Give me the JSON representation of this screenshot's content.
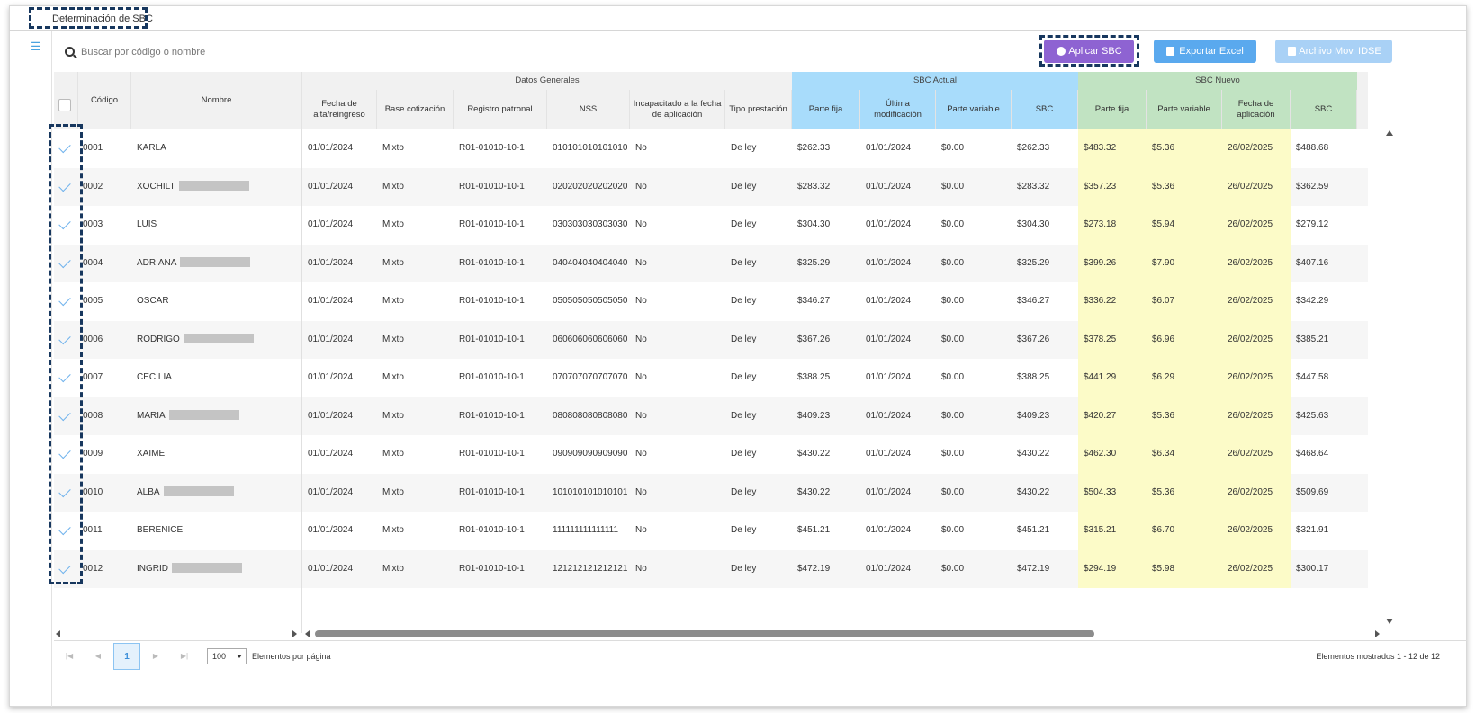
{
  "tab": {
    "label": "Determinación de SBC"
  },
  "search": {
    "placeholder": "Buscar por código o nombre"
  },
  "toolbar": {
    "apply_label": "Aplicar SBC",
    "export_label": "Exportar Excel",
    "idse_label": "Archivo Mov. IDSE"
  },
  "colors": {
    "apply": "#8e63d2",
    "export": "#5aa9ee",
    "idse": "#a9d1f6",
    "sbc_actual_bg": "#a8dcfb",
    "sbc_nuevo_header": "#c1e3c2",
    "sbc_nuevo_body": "#fcfbc8"
  },
  "headers": {
    "groups": {
      "datos": "Datos Generales",
      "actual": "SBC Actual",
      "nuevo": "SBC Nuevo"
    },
    "codigo": "Código",
    "nombre": "Nombre",
    "fecha_alta": "Fecha de alta/reingreso",
    "base": "Base cotización",
    "registro": "Registro patronal",
    "nss": "NSS",
    "incapacitado": "Incapacitado a la fecha de aplicación",
    "tipo": "Tipo prestación",
    "a_fija": "Parte fija",
    "a_ultima": "Última modificación",
    "a_variable": "Parte variable",
    "a_sbc": "SBC",
    "n_fija": "Parte fija",
    "n_variable": "Parte variable",
    "n_fecha": "Fecha de aplicación",
    "n_sbc": "SBC"
  },
  "rows": [
    {
      "codigo": "0001",
      "nombre": "KARLA",
      "redacted": false,
      "fecha": "01/01/2024",
      "base": "Mixto",
      "registro": "R01-01010-10-1",
      "nss": "010101010101010",
      "inc": "No",
      "tipo": "De ley",
      "a_fija": "$262.33",
      "a_ultima": "01/01/2024",
      "a_var": "$0.00",
      "a_sbc": "$262.33",
      "n_fija": "$483.32",
      "n_var": "$5.36",
      "n_fecha": "26/02/2025",
      "n_sbc": "$488.68"
    },
    {
      "codigo": "0002",
      "nombre": "XOCHILT",
      "redacted": true,
      "fecha": "01/01/2024",
      "base": "Mixto",
      "registro": "R01-01010-10-1",
      "nss": "020202020202020",
      "inc": "No",
      "tipo": "De ley",
      "a_fija": "$283.32",
      "a_ultima": "01/01/2024",
      "a_var": "$0.00",
      "a_sbc": "$283.32",
      "n_fija": "$357.23",
      "n_var": "$5.36",
      "n_fecha": "26/02/2025",
      "n_sbc": "$362.59"
    },
    {
      "codigo": "0003",
      "nombre": "LUIS",
      "redacted": false,
      "fecha": "01/01/2024",
      "base": "Mixto",
      "registro": "R01-01010-10-1",
      "nss": "030303030303030",
      "inc": "No",
      "tipo": "De ley",
      "a_fija": "$304.30",
      "a_ultima": "01/01/2024",
      "a_var": "$0.00",
      "a_sbc": "$304.30",
      "n_fija": "$273.18",
      "n_var": "$5.94",
      "n_fecha": "26/02/2025",
      "n_sbc": "$279.12"
    },
    {
      "codigo": "0004",
      "nombre": "ADRIANA",
      "redacted": true,
      "fecha": "01/01/2024",
      "base": "Mixto",
      "registro": "R01-01010-10-1",
      "nss": "040404040404040",
      "inc": "No",
      "tipo": "De ley",
      "a_fija": "$325.29",
      "a_ultima": "01/01/2024",
      "a_var": "$0.00",
      "a_sbc": "$325.29",
      "n_fija": "$399.26",
      "n_var": "$7.90",
      "n_fecha": "26/02/2025",
      "n_sbc": "$407.16"
    },
    {
      "codigo": "0005",
      "nombre": "OSCAR",
      "redacted": false,
      "fecha": "01/01/2024",
      "base": "Mixto",
      "registro": "R01-01010-10-1",
      "nss": "050505050505050",
      "inc": "No",
      "tipo": "De ley",
      "a_fija": "$346.27",
      "a_ultima": "01/01/2024",
      "a_var": "$0.00",
      "a_sbc": "$346.27",
      "n_fija": "$336.22",
      "n_var": "$6.07",
      "n_fecha": "26/02/2025",
      "n_sbc": "$342.29"
    },
    {
      "codigo": "0006",
      "nombre": "RODRIGO",
      "redacted": true,
      "fecha": "01/01/2024",
      "base": "Mixto",
      "registro": "R01-01010-10-1",
      "nss": "060606060606060",
      "inc": "No",
      "tipo": "De ley",
      "a_fija": "$367.26",
      "a_ultima": "01/01/2024",
      "a_var": "$0.00",
      "a_sbc": "$367.26",
      "n_fija": "$378.25",
      "n_var": "$6.96",
      "n_fecha": "26/02/2025",
      "n_sbc": "$385.21"
    },
    {
      "codigo": "0007",
      "nombre": "CECILIA",
      "redacted": false,
      "fecha": "01/01/2024",
      "base": "Mixto",
      "registro": "R01-01010-10-1",
      "nss": "070707070707070",
      "inc": "No",
      "tipo": "De ley",
      "a_fija": "$388.25",
      "a_ultima": "01/01/2024",
      "a_var": "$0.00",
      "a_sbc": "$388.25",
      "n_fija": "$441.29",
      "n_var": "$6.29",
      "n_fecha": "26/02/2025",
      "n_sbc": "$447.58"
    },
    {
      "codigo": "0008",
      "nombre": "MARIA",
      "redacted": true,
      "fecha": "01/01/2024",
      "base": "Mixto",
      "registro": "R01-01010-10-1",
      "nss": "080808080808080",
      "inc": "No",
      "tipo": "De ley",
      "a_fija": "$409.23",
      "a_ultima": "01/01/2024",
      "a_var": "$0.00",
      "a_sbc": "$409.23",
      "n_fija": "$420.27",
      "n_var": "$5.36",
      "n_fecha": "26/02/2025",
      "n_sbc": "$425.63"
    },
    {
      "codigo": "0009",
      "nombre": "XAIME",
      "redacted": false,
      "fecha": "01/01/2024",
      "base": "Mixto",
      "registro": "R01-01010-10-1",
      "nss": "090909090909090",
      "inc": "No",
      "tipo": "De ley",
      "a_fija": "$430.22",
      "a_ultima": "01/01/2024",
      "a_var": "$0.00",
      "a_sbc": "$430.22",
      "n_fija": "$462.30",
      "n_var": "$6.34",
      "n_fecha": "26/02/2025",
      "n_sbc": "$468.64"
    },
    {
      "codigo": "0010",
      "nombre": "ALBA",
      "redacted": true,
      "fecha": "01/01/2024",
      "base": "Mixto",
      "registro": "R01-01010-10-1",
      "nss": "101010101010101",
      "inc": "No",
      "tipo": "De ley",
      "a_fija": "$430.22",
      "a_ultima": "01/01/2024",
      "a_var": "$0.00",
      "a_sbc": "$430.22",
      "n_fija": "$504.33",
      "n_var": "$5.36",
      "n_fecha": "26/02/2025",
      "n_sbc": "$509.69"
    },
    {
      "codigo": "0011",
      "nombre": "BERENICE",
      "redacted": false,
      "fecha": "01/01/2024",
      "base": "Mixto",
      "registro": "R01-01010-10-1",
      "nss": "111111111111111",
      "inc": "No",
      "tipo": "De ley",
      "a_fija": "$451.21",
      "a_ultima": "01/01/2024",
      "a_var": "$0.00",
      "a_sbc": "$451.21",
      "n_fija": "$315.21",
      "n_var": "$6.70",
      "n_fecha": "26/02/2025",
      "n_sbc": "$321.91"
    },
    {
      "codigo": "0012",
      "nombre": "INGRID",
      "redacted": true,
      "fecha": "01/01/2024",
      "base": "Mixto",
      "registro": "R01-01010-10-1",
      "nss": "121212121212121",
      "inc": "No",
      "tipo": "De ley",
      "a_fija": "$472.19",
      "a_ultima": "01/01/2024",
      "a_var": "$0.00",
      "a_sbc": "$472.19",
      "n_fija": "$294.19",
      "n_var": "$5.98",
      "n_fecha": "26/02/2025",
      "n_sbc": "$300.17"
    }
  ],
  "pager": {
    "current_page": "1",
    "page_size": "100",
    "per_page_label": "Elementos por página",
    "shown_label": "Elementos mostrados 1 - 12 de 12"
  }
}
